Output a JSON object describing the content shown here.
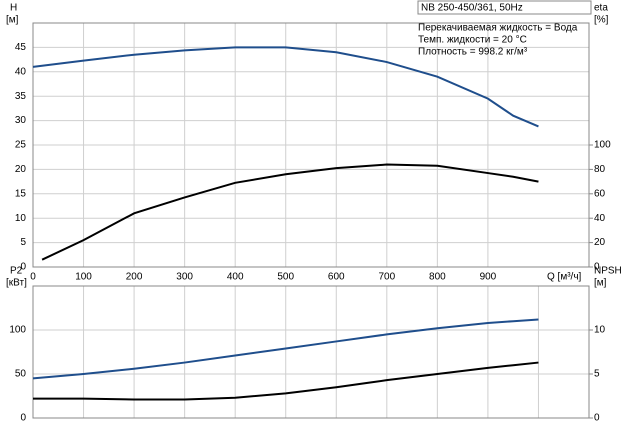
{
  "chart_data": [
    {
      "type": "line",
      "title": "NB 250-450/361, 50Hz",
      "annotations": [
        "Перекачиваемая жидкость = Вода",
        "Темп. жидкости = 20 °C",
        "Плотность = 998.2 кг/м³"
      ],
      "xlabel": "Q [м³/ч]",
      "ylabel": "H",
      "ylabel_unit": "[м]",
      "y2label": "eta",
      "y2label_unit": "[%]",
      "xlim": [
        0,
        1100
      ],
      "xticks": [
        0,
        100,
        200,
        300,
        400,
        500,
        600,
        700,
        800,
        900
      ],
      "ylim": [
        0,
        50
      ],
      "yticks": [
        0,
        5,
        10,
        15,
        20,
        25,
        30,
        35,
        40,
        45
      ],
      "y2lim": [
        0,
        200
      ],
      "y2ticks": [
        0,
        20,
        40,
        60,
        80,
        100
      ],
      "grid": true,
      "series": [
        {
          "color": "#1f4e8c",
          "axis": "y",
          "x": [
            0,
            100,
            200,
            300,
            400,
            500,
            600,
            700,
            800,
            900,
            950,
            1000
          ],
          "values": [
            41,
            42.3,
            43.5,
            44.4,
            45,
            45,
            44,
            42,
            39,
            34.5,
            31,
            28.8
          ]
        },
        {
          "color": "#000000",
          "axis": "y2",
          "x": [
            18,
            100,
            200,
            300,
            400,
            500,
            600,
            700,
            800,
            900,
            950,
            1000
          ],
          "values": [
            6,
            22,
            44,
            57,
            69,
            76,
            81,
            84,
            83,
            77,
            74,
            70
          ]
        }
      ]
    },
    {
      "type": "line",
      "ylabel": "P2",
      "ylabel_unit": "[кВт]",
      "y2label": "NPSH",
      "y2label_unit": "[м]",
      "xlim": [
        0,
        1100
      ],
      "xgrid": [
        100,
        200,
        300,
        400,
        500,
        600,
        700,
        800,
        900,
        1000
      ],
      "ylim": [
        0,
        150
      ],
      "yticks": [
        0,
        50,
        100
      ],
      "y2lim": [
        0,
        15
      ],
      "y2ticks": [
        0,
        5,
        10
      ],
      "grid": true,
      "series": [
        {
          "color": "#1f4e8c",
          "axis": "y",
          "x": [
            0,
            100,
            200,
            300,
            400,
            500,
            600,
            700,
            800,
            900,
            950,
            1000
          ],
          "values": [
            45,
            50,
            56,
            63,
            71,
            79,
            87,
            95,
            102,
            108,
            110,
            112
          ]
        },
        {
          "color": "#000000",
          "axis": "y2",
          "x": [
            0,
            100,
            200,
            300,
            400,
            500,
            600,
            700,
            800,
            900,
            950,
            1000
          ],
          "values": [
            2.2,
            2.2,
            2.1,
            2.1,
            2.3,
            2.8,
            3.5,
            4.3,
            5,
            5.7,
            6,
            6.3
          ]
        }
      ]
    }
  ]
}
